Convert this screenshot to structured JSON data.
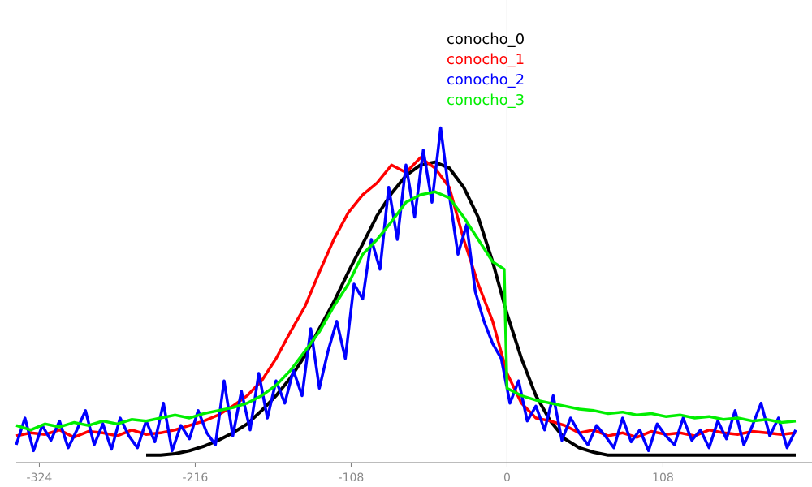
{
  "chart_data": {
    "type": "line",
    "xlim": [
      -340,
      200
    ],
    "ylim": [
      0,
      240
    ],
    "grid": false,
    "legend_placement": "top-center",
    "x_ticks": [
      -324,
      -216,
      -108,
      0,
      108
    ],
    "x_tick_labels": [
      "-324",
      "-216",
      "-108",
      "0",
      "108"
    ],
    "vertical_reference_line_at": 0,
    "series": [
      {
        "name": "conocho_0",
        "color": "#000000",
        "x": [
          -250,
          -240,
          -230,
          -220,
          -210,
          -200,
          -190,
          -180,
          -170,
          -160,
          -150,
          -140,
          -130,
          -120,
          -110,
          -100,
          -90,
          -80,
          -70,
          -60,
          -50,
          -40,
          -30,
          -20,
          -10,
          0,
          10,
          20,
          30,
          40,
          50,
          60,
          70,
          80,
          90,
          100,
          110,
          120,
          130,
          140,
          150,
          160,
          170,
          180,
          190,
          200
        ],
        "values": [
          5,
          5,
          6,
          8,
          11,
          15,
          20,
          26,
          35,
          45,
          57,
          72,
          90,
          108,
          128,
          147,
          166,
          181,
          193,
          200,
          202,
          198,
          185,
          165,
          135,
          100,
          70,
          45,
          28,
          16,
          10,
          7,
          5,
          5,
          5,
          5,
          5,
          5,
          5,
          5,
          5,
          5,
          5,
          5,
          5,
          5
        ]
      },
      {
        "name": "conocho_1",
        "color": "#ff0000",
        "x": [
          -340,
          -330,
          -320,
          -310,
          -300,
          -290,
          -280,
          -270,
          -260,
          -250,
          -240,
          -230,
          -220,
          -210,
          -200,
          -190,
          -180,
          -170,
          -160,
          -150,
          -140,
          -130,
          -120,
          -110,
          -100,
          -90,
          -80,
          -70,
          -60,
          -50,
          -40,
          -30,
          -20,
          -10,
          0,
          10,
          20,
          30,
          40,
          50,
          60,
          70,
          80,
          90,
          100,
          110,
          120,
          130,
          140,
          150,
          160,
          170,
          180,
          190,
          200
        ],
        "values": [
          18,
          20,
          19,
          22,
          17,
          21,
          20,
          18,
          22,
          19,
          20,
          22,
          25,
          28,
          32,
          38,
          45,
          55,
          70,
          88,
          105,
          128,
          150,
          168,
          180,
          188,
          200,
          195,
          205,
          198,
          185,
          150,
          120,
          95,
          60,
          40,
          30,
          28,
          25,
          20,
          22,
          18,
          20,
          17,
          21,
          19,
          20,
          18,
          22,
          20,
          19,
          21,
          20,
          19,
          20
        ]
      },
      {
        "name": "conocho_2",
        "color": "#0000ff",
        "x": [
          -340,
          -334,
          -328,
          -322,
          -316,
          -310,
          -304,
          -298,
          -292,
          -286,
          -280,
          -274,
          -268,
          -262,
          -256,
          -250,
          -244,
          -238,
          -232,
          -226,
          -220,
          -214,
          -208,
          -202,
          -196,
          -190,
          -184,
          -178,
          -172,
          -166,
          -160,
          -154,
          -148,
          -142,
          -136,
          -130,
          -124,
          -118,
          -112,
          -106,
          -100,
          -94,
          -88,
          -82,
          -76,
          -70,
          -64,
          -58,
          -52,
          -46,
          -40,
          -34,
          -28,
          -22,
          -16,
          -10,
          -4,
          2,
          8,
          14,
          20,
          26,
          32,
          38,
          44,
          50,
          56,
          62,
          68,
          74,
          80,
          86,
          92,
          98,
          104,
          110,
          116,
          122,
          128,
          134,
          140,
          146,
          152,
          158,
          164,
          170,
          176,
          182,
          188,
          194,
          200
        ],
        "values": [
          12,
          30,
          8,
          25,
          15,
          28,
          10,
          22,
          35,
          12,
          26,
          9,
          30,
          18,
          10,
          28,
          14,
          40,
          8,
          25,
          16,
          35,
          20,
          12,
          55,
          18,
          48,
          22,
          60,
          30,
          55,
          40,
          62,
          45,
          90,
          50,
          75,
          95,
          70,
          120,
          110,
          150,
          130,
          185,
          150,
          200,
          165,
          210,
          175,
          225,
          180,
          140,
          160,
          115,
          95,
          80,
          70,
          40,
          55,
          28,
          38,
          22,
          45,
          15,
          30,
          20,
          12,
          25,
          18,
          10,
          30,
          14,
          22,
          8,
          26,
          18,
          12,
          30,
          15,
          22,
          10,
          28,
          16,
          35,
          12,
          25,
          40,
          18,
          30,
          10,
          22
        ]
      },
      {
        "name": "conocho_3",
        "color": "#00ee00",
        "x": [
          -340,
          -330,
          -320,
          -310,
          -300,
          -290,
          -280,
          -270,
          -260,
          -250,
          -240,
          -230,
          -220,
          -210,
          -200,
          -190,
          -180,
          -170,
          -160,
          -150,
          -140,
          -130,
          -120,
          -110,
          -100,
          -90,
          -80,
          -70,
          -60,
          -50,
          -40,
          -30,
          -20,
          -10,
          -2,
          0,
          10,
          20,
          30,
          40,
          50,
          60,
          70,
          80,
          90,
          100,
          110,
          120,
          130,
          140,
          150,
          160,
          170,
          180,
          190,
          200
        ],
        "values": [
          25,
          22,
          26,
          24,
          27,
          25,
          28,
          26,
          29,
          28,
          30,
          32,
          30,
          33,
          35,
          37,
          40,
          45,
          52,
          62,
          75,
          88,
          105,
          120,
          140,
          150,
          162,
          175,
          180,
          182,
          178,
          165,
          150,
          135,
          130,
          50,
          45,
          42,
          40,
          38,
          36,
          35,
          33,
          34,
          32,
          33,
          31,
          32,
          30,
          31,
          29,
          30,
          28,
          29,
          27,
          28
        ]
      }
    ]
  }
}
